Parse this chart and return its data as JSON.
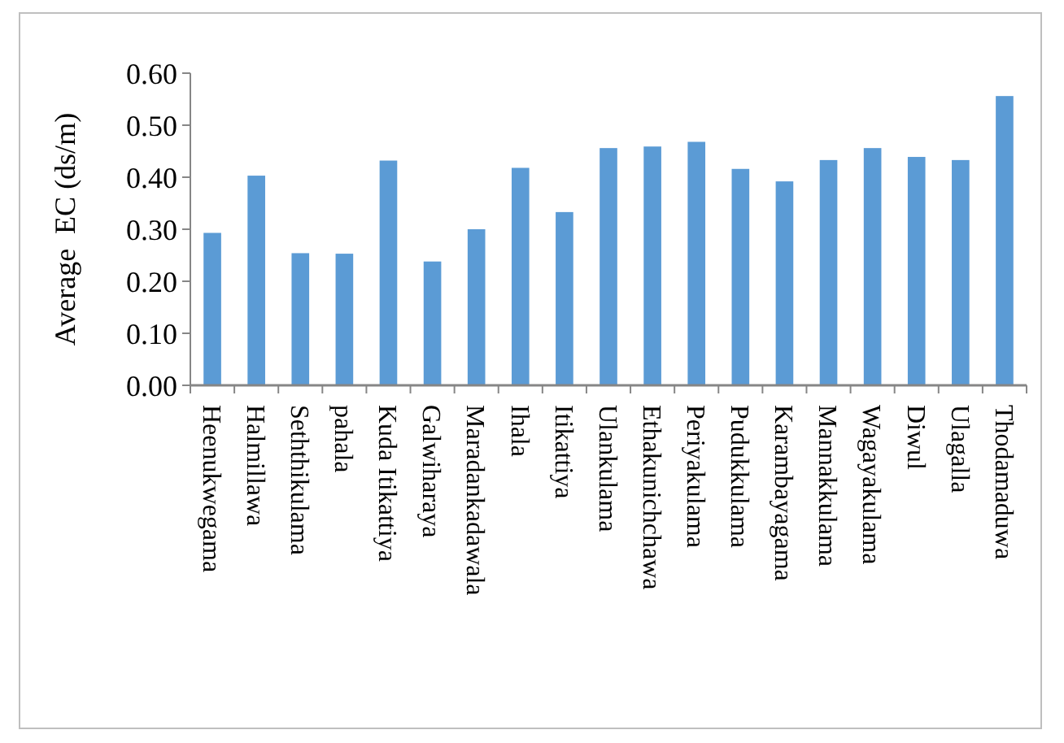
{
  "chart_data": {
    "type": "bar",
    "ylabel": "Average  EC (ds/m)",
    "categories": [
      "Heenukwegama",
      "Halmillawa",
      "Seththikulama",
      "pahala",
      "Kuda Itikattiya",
      "Galwiharaya",
      "Maradankadawala",
      "Ihala",
      "Itikattiya",
      "Ulankulama",
      "Ethakunichchawa",
      "Periyakulama",
      "Pudukkulama",
      "Karambayagama",
      "Mannakkulama",
      "Wagayakulama",
      "Diwul",
      "Ulagalla",
      "Thodamaduwa"
    ],
    "values": [
      0.293,
      0.403,
      0.254,
      0.253,
      0.432,
      0.238,
      0.3,
      0.418,
      0.333,
      0.456,
      0.459,
      0.468,
      0.416,
      0.392,
      0.433,
      0.456,
      0.439,
      0.433,
      0.556
    ],
    "color": "#5b9bd5",
    "ylim": [
      0,
      0.6
    ],
    "yticks": [
      {
        "value": 0,
        "label": "0.00"
      },
      {
        "value": 0.1,
        "label": "0.10"
      },
      {
        "value": 0.2,
        "label": "0.20"
      },
      {
        "value": 0.3,
        "label": "0.30"
      },
      {
        "value": 0.4,
        "label": "0.40"
      },
      {
        "value": 0.5,
        "label": "0.50"
      },
      {
        "value": 0.6,
        "label": "0.60"
      }
    ],
    "grid": false
  }
}
